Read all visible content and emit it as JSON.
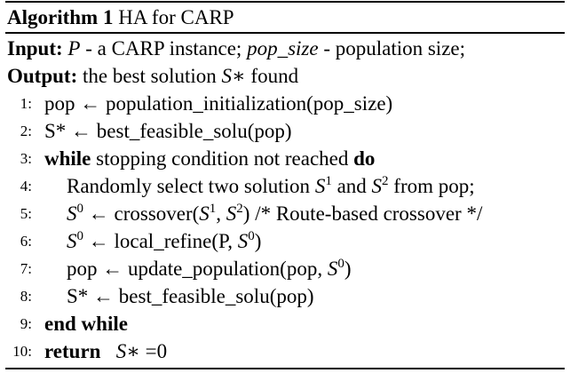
{
  "algorithm": {
    "label": "Algorithm 1",
    "name": "HA for CARP",
    "input": {
      "label": "Input:",
      "p_var": "P",
      "p_desc": " - a CARP instance; ",
      "pop_var": "pop_size",
      "pop_desc": " - population size;"
    },
    "output": {
      "label": "Output:",
      "text": " the best solution ",
      "var": "S∗",
      "after": " found"
    },
    "lines": [
      {
        "num": "1:",
        "pre": "pop ← population_initialization(pop_size)"
      },
      {
        "num": "2:",
        "pre": "S* ← best_feasible_solu(pop)"
      },
      {
        "num": "3:",
        "kw1": "while",
        "mid": " stopping condition not reached ",
        "kw2": "do"
      },
      {
        "num": "4:",
        "a": "Randomly select two solution ",
        "v1": "S",
        "s1": "1",
        "b": " and ",
        "v2": "S",
        "s2": "2",
        "c": " from pop;"
      },
      {
        "num": "5:",
        "v0": "S",
        "s0": "0",
        "a": " ← crossover(",
        "v1": "S",
        "s1": "1",
        "b": ", ",
        "v2": "S",
        "s2": "2",
        "c": ") /* Route-based crossover */"
      },
      {
        "num": "6:",
        "v0": "S",
        "s0": "0",
        "a": " ← local_refine(P, ",
        "v1": "S",
        "s1": "0",
        "c": ")"
      },
      {
        "num": "7:",
        "a": "pop ← update_population(pop, ",
        "v1": "S",
        "s1": "0",
        "c": ")"
      },
      {
        "num": "8:",
        "pre": "S* ← best_feasible_solu(pop)"
      },
      {
        "num": "9:",
        "kw": "end while"
      },
      {
        "num": "10:",
        "kw": "return",
        "var": "S∗",
        "after": " =0"
      }
    ]
  }
}
